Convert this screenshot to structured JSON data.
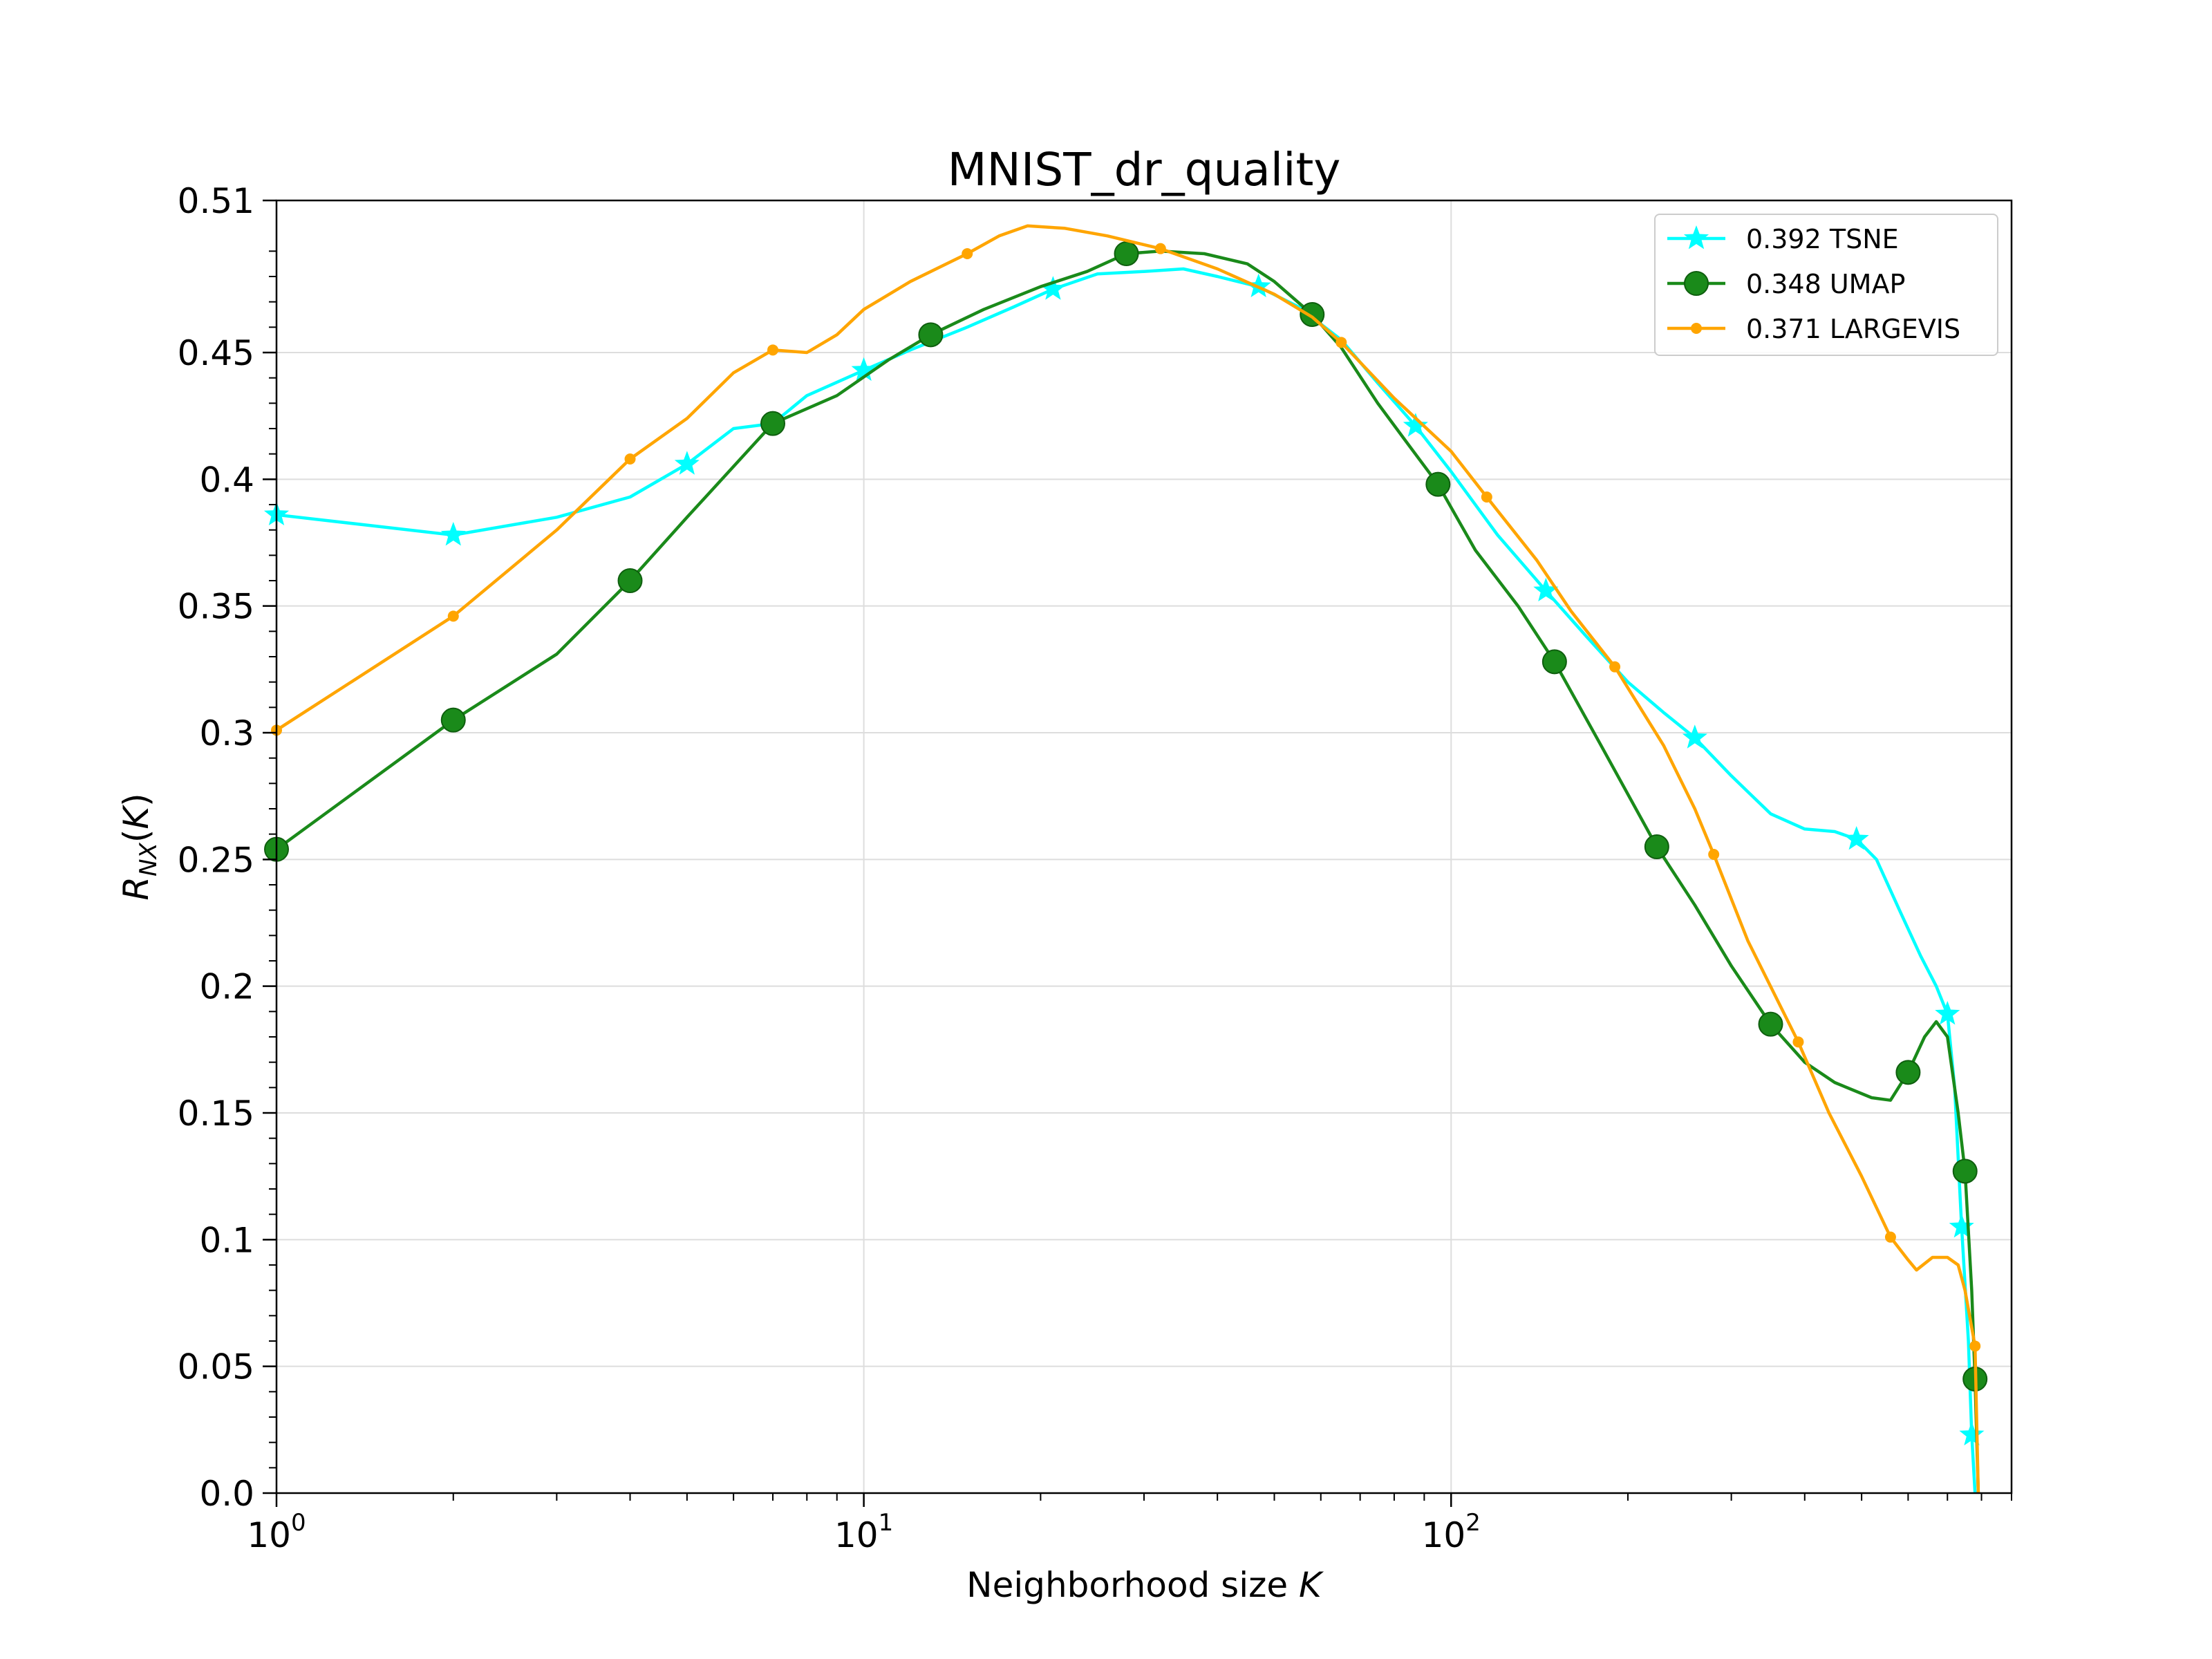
{
  "chart_data": {
    "type": "line",
    "title": "MNIST_dr_quality",
    "xlabel_prefix": "Neighborhood size ",
    "xlabel_var": "K",
    "ylabel": "R_NX(K)",
    "xscale": "log",
    "xlim": [
      1,
      900
    ],
    "ylim": [
      0,
      0.51
    ],
    "grid": true,
    "legend_position": "top-right",
    "x_ticks": [
      {
        "value": 1,
        "base": "10",
        "exp": "0"
      },
      {
        "value": 10,
        "base": "10",
        "exp": "1"
      },
      {
        "value": 100,
        "base": "10",
        "exp": "2"
      }
    ],
    "y_ticks": [
      {
        "value": 0.0,
        "label": "0.0"
      },
      {
        "value": 0.05,
        "label": "0.05"
      },
      {
        "value": 0.1,
        "label": "0.1"
      },
      {
        "value": 0.15,
        "label": "0.15"
      },
      {
        "value": 0.2,
        "label": "0.2"
      },
      {
        "value": 0.25,
        "label": "0.25"
      },
      {
        "value": 0.3,
        "label": "0.3"
      },
      {
        "value": 0.35,
        "label": "0.35"
      },
      {
        "value": 0.4,
        "label": "0.4"
      },
      {
        "value": 0.45,
        "label": "0.45"
      },
      {
        "value": 0.51,
        "label": "0.51"
      }
    ],
    "series": [
      {
        "name": "0.392 TSNE",
        "color": "#00ffff",
        "marker": "star",
        "points": [
          [
            1,
            0.386
          ],
          [
            2,
            0.378
          ],
          [
            3,
            0.385
          ],
          [
            4,
            0.393
          ],
          [
            5,
            0.406
          ],
          [
            6,
            0.42
          ],
          [
            7,
            0.422
          ],
          [
            8,
            0.433
          ],
          [
            10,
            0.443
          ],
          [
            12,
            0.451
          ],
          [
            15,
            0.46
          ],
          [
            18,
            0.468
          ],
          [
            21,
            0.475
          ],
          [
            25,
            0.481
          ],
          [
            30,
            0.482
          ],
          [
            35,
            0.483
          ],
          [
            40,
            0.48
          ],
          [
            47,
            0.476
          ],
          [
            55,
            0.468
          ],
          [
            65,
            0.455
          ],
          [
            75,
            0.438
          ],
          [
            87,
            0.421
          ],
          [
            100,
            0.403
          ],
          [
            120,
            0.378
          ],
          [
            145,
            0.356
          ],
          [
            170,
            0.338
          ],
          [
            200,
            0.32
          ],
          [
            230,
            0.308
          ],
          [
            260,
            0.298
          ],
          [
            300,
            0.283
          ],
          [
            350,
            0.268
          ],
          [
            400,
            0.262
          ],
          [
            450,
            0.261
          ],
          [
            490,
            0.258
          ],
          [
            530,
            0.25
          ],
          [
            580,
            0.23
          ],
          [
            630,
            0.212
          ],
          [
            670,
            0.2
          ],
          [
            700,
            0.189
          ],
          [
            720,
            0.16
          ],
          [
            740,
            0.105
          ],
          [
            760,
            0.06
          ],
          [
            770,
            0.023
          ],
          [
            780,
            0.0
          ]
        ],
        "marker_x": [
          1,
          2,
          5,
          10,
          21,
          47,
          87,
          145,
          260,
          490,
          700,
          740,
          770
        ]
      },
      {
        "name": "0.348 UMAP",
        "color": "#1a8a1a",
        "marker": "circle",
        "points": [
          [
            1,
            0.254
          ],
          [
            2,
            0.305
          ],
          [
            3,
            0.331
          ],
          [
            4,
            0.36
          ],
          [
            5,
            0.385
          ],
          [
            7,
            0.422
          ],
          [
            9,
            0.433
          ],
          [
            11,
            0.447
          ],
          [
            13,
            0.457
          ],
          [
            16,
            0.467
          ],
          [
            20,
            0.476
          ],
          [
            24,
            0.482
          ],
          [
            28,
            0.489
          ],
          [
            32,
            0.49
          ],
          [
            38,
            0.489
          ],
          [
            45,
            0.485
          ],
          [
            50,
            0.478
          ],
          [
            58,
            0.465
          ],
          [
            65,
            0.452
          ],
          [
            75,
            0.43
          ],
          [
            85,
            0.413
          ],
          [
            95,
            0.398
          ],
          [
            110,
            0.372
          ],
          [
            130,
            0.35
          ],
          [
            150,
            0.328
          ],
          [
            180,
            0.295
          ],
          [
            224,
            0.255
          ],
          [
            260,
            0.232
          ],
          [
            300,
            0.208
          ],
          [
            350,
            0.185
          ],
          [
            400,
            0.17
          ],
          [
            450,
            0.162
          ],
          [
            520,
            0.156
          ],
          [
            560,
            0.155
          ],
          [
            600,
            0.166
          ],
          [
            640,
            0.18
          ],
          [
            670,
            0.186
          ],
          [
            700,
            0.18
          ],
          [
            730,
            0.15
          ],
          [
            750,
            0.127
          ],
          [
            770,
            0.08
          ],
          [
            780,
            0.045
          ],
          [
            790,
            0.0
          ]
        ],
        "marker_x": [
          1,
          2,
          4,
          7,
          13,
          28,
          58,
          95,
          150,
          224,
          350,
          600,
          750,
          780
        ]
      },
      {
        "name": "0.371 LARGEVIS",
        "color": "#ffa500",
        "marker": "dot",
        "points": [
          [
            1,
            0.301
          ],
          [
            2,
            0.346
          ],
          [
            3,
            0.38
          ],
          [
            4,
            0.408
          ],
          [
            5,
            0.424
          ],
          [
            6,
            0.442
          ],
          [
            7,
            0.451
          ],
          [
            8,
            0.45
          ],
          [
            9,
            0.457
          ],
          [
            10,
            0.467
          ],
          [
            12,
            0.478
          ],
          [
            15,
            0.489
          ],
          [
            17,
            0.496
          ],
          [
            19,
            0.5
          ],
          [
            22,
            0.499
          ],
          [
            26,
            0.496
          ],
          [
            32,
            0.491
          ],
          [
            40,
            0.483
          ],
          [
            50,
            0.473
          ],
          [
            58,
            0.464
          ],
          [
            65,
            0.454
          ],
          [
            80,
            0.432
          ],
          [
            100,
            0.411
          ],
          [
            115,
            0.393
          ],
          [
            140,
            0.368
          ],
          [
            160,
            0.348
          ],
          [
            190,
            0.326
          ],
          [
            230,
            0.295
          ],
          [
            260,
            0.27
          ],
          [
            280,
            0.252
          ],
          [
            320,
            0.218
          ],
          [
            390,
            0.178
          ],
          [
            440,
            0.15
          ],
          [
            500,
            0.125
          ],
          [
            560,
            0.101
          ],
          [
            600,
            0.092
          ],
          [
            620,
            0.088
          ],
          [
            660,
            0.093
          ],
          [
            700,
            0.093
          ],
          [
            730,
            0.09
          ],
          [
            750,
            0.08
          ],
          [
            780,
            0.058
          ],
          [
            790,
            0.0
          ]
        ],
        "marker_x": [
          1,
          2,
          4,
          7,
          15,
          32,
          65,
          115,
          190,
          280,
          390,
          560,
          780
        ]
      }
    ]
  }
}
